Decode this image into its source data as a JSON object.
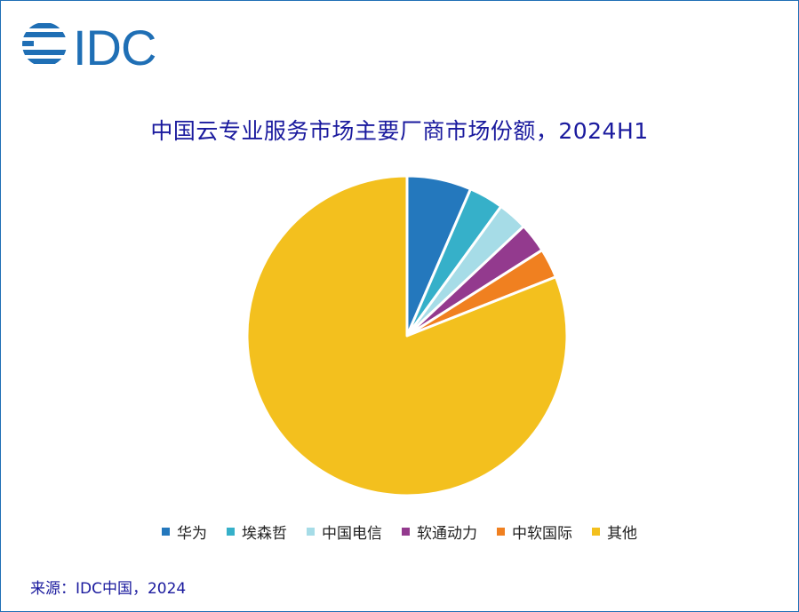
{
  "logo": {
    "text": "IDC"
  },
  "chart_data": {
    "type": "pie",
    "title": "中国云专业服务市场主要厂商市场份额，2024H1",
    "categories": [
      "华为",
      "埃森哲",
      "中国电信",
      "软通动力",
      "中软国际",
      "其他"
    ],
    "values": [
      6.5,
      3.5,
      3.0,
      3.0,
      3.0,
      81.0
    ],
    "unit": "%",
    "colors": [
      "#2478bd",
      "#36b0c9",
      "#a6dce7",
      "#933a8e",
      "#f08020",
      "#f3c01e"
    ],
    "legend_position": "bottom",
    "start_angle_deg": 0,
    "direction": "clockwise"
  },
  "source": "来源：IDC中国，2024"
}
